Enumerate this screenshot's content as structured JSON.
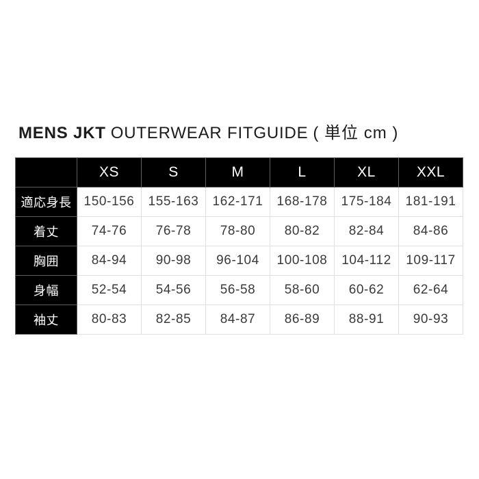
{
  "title": {
    "brand": "MENS JKT",
    "rest": "OUTERWEAR FITGUIDE",
    "unit": "( 単位 cm )"
  },
  "chart_data": {
    "type": "table",
    "title": "MENS JKT OUTERWEAR FITGUIDE ( 単位 cm )",
    "unit": "cm",
    "columns": [
      "XS",
      "S",
      "M",
      "L",
      "XL",
      "XXL"
    ],
    "rows": [
      {
        "label": "適応身長",
        "values": [
          "150-156",
          "155-163",
          "162-171",
          "168-178",
          "175-184",
          "181-191"
        ]
      },
      {
        "label": "着丈",
        "values": [
          "74-76",
          "76-78",
          "78-80",
          "80-82",
          "82-84",
          "84-86"
        ]
      },
      {
        "label": "胸囲",
        "values": [
          "84-94",
          "90-98",
          "96-104",
          "100-108",
          "104-112",
          "109-117"
        ]
      },
      {
        "label": "身幅",
        "values": [
          "52-54",
          "54-56",
          "56-58",
          "58-60",
          "60-62",
          "62-64"
        ]
      },
      {
        "label": "袖丈",
        "values": [
          "80-83",
          "82-85",
          "84-87",
          "86-89",
          "88-91",
          "90-93"
        ]
      }
    ]
  },
  "colors": {
    "header_bg": "#000000",
    "header_text": "#ffffff",
    "cell_bg": "#ffffff",
    "cell_text": "#3a3a3a",
    "border_light": "#e0e0e0",
    "border_dark": "#5f5f5f"
  }
}
